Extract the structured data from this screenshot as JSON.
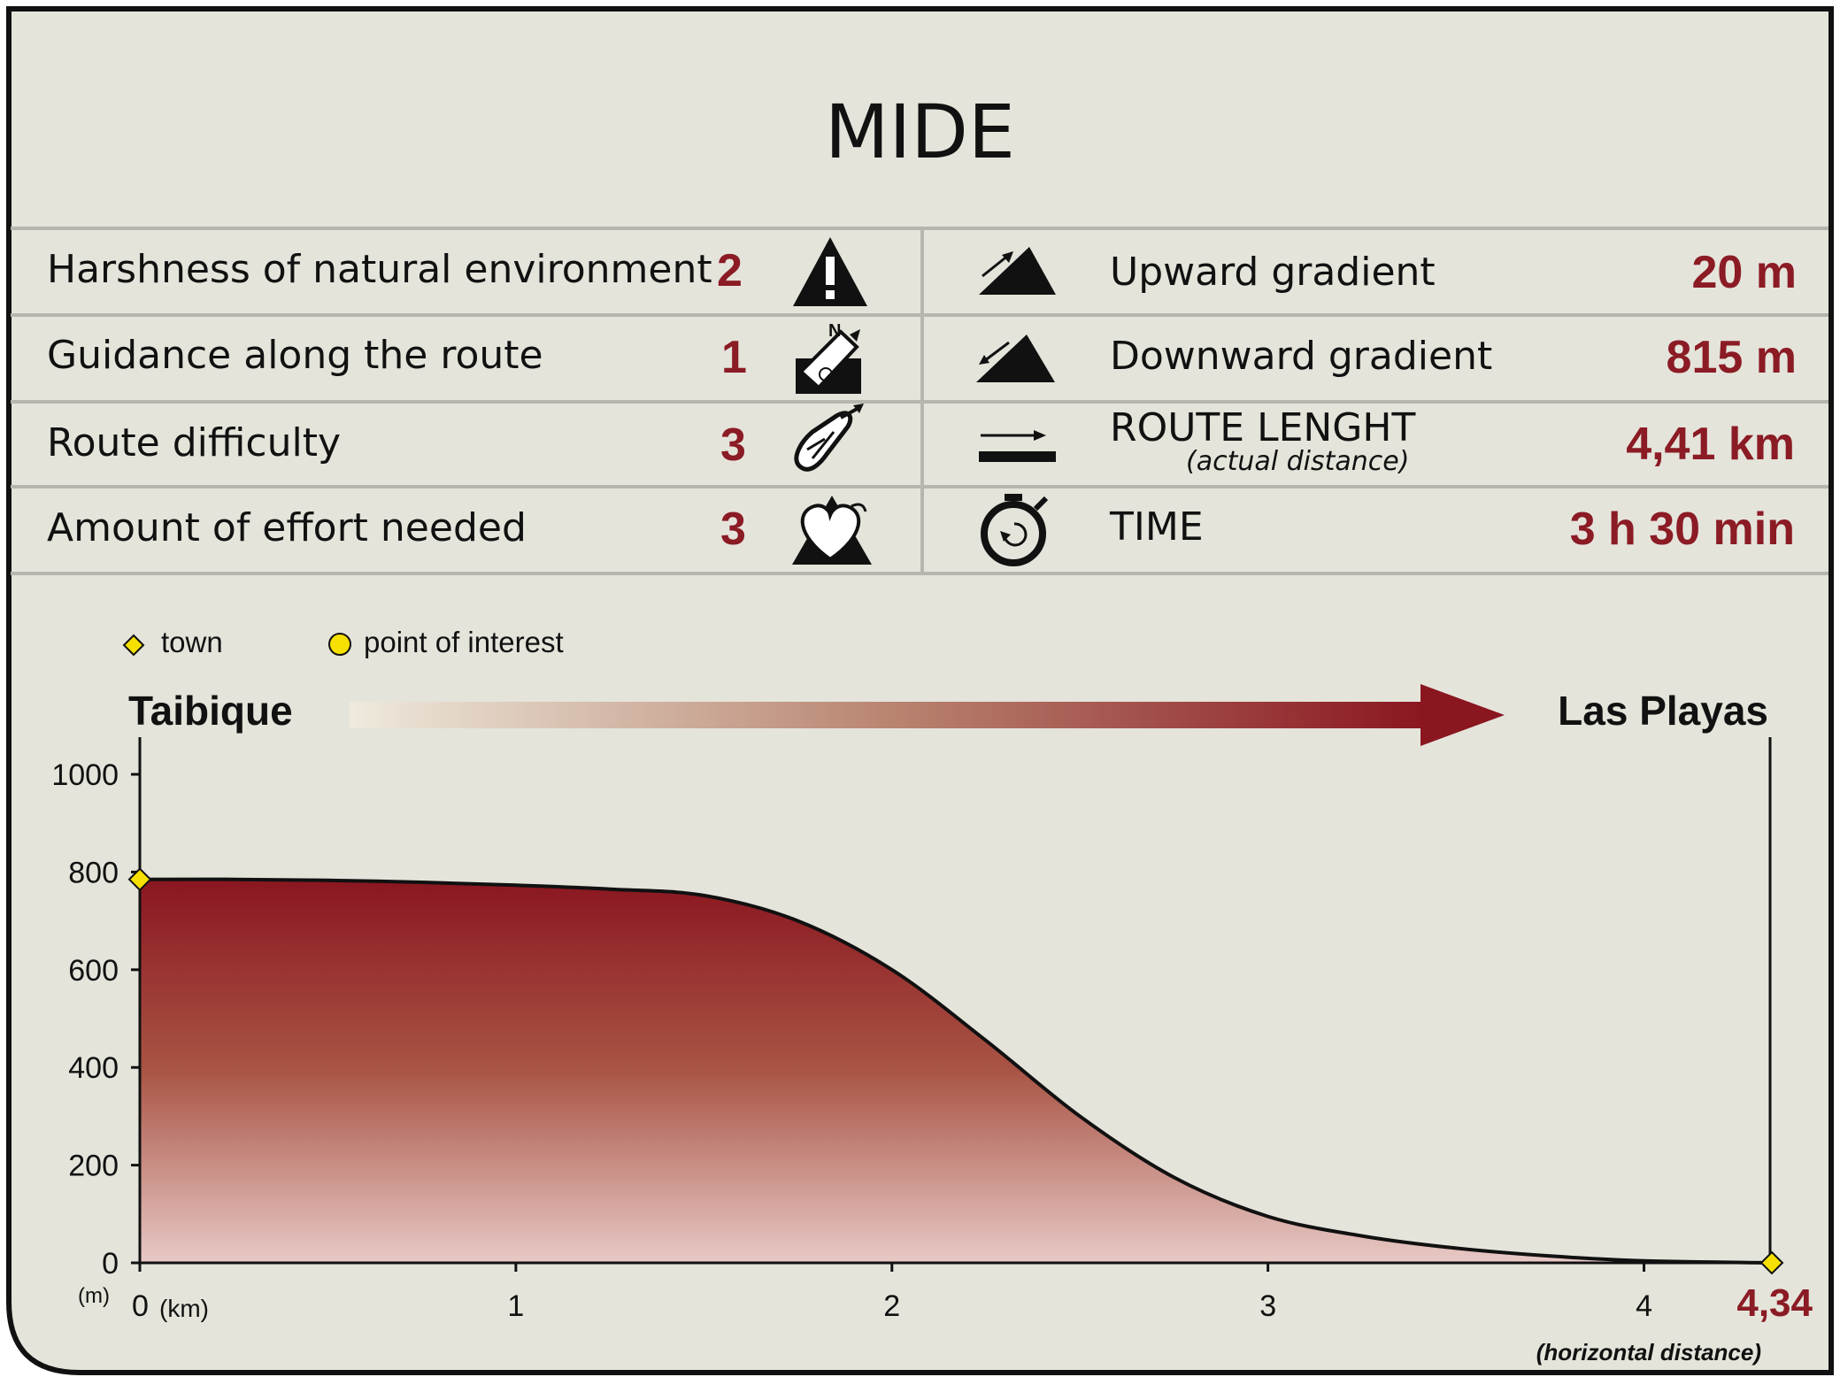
{
  "title": "MIDE",
  "ratings": [
    {
      "label": "Harshness of natural environment",
      "value": "2",
      "icon": "warning-triangle-icon"
    },
    {
      "label": "Guidance along the route",
      "value": "1",
      "icon": "compass-signpost-icon"
    },
    {
      "label": "Route difficulty",
      "value": "3",
      "icon": "footprint-icon"
    },
    {
      "label": "Amount of effort needed",
      "value": "3",
      "icon": "heart-mountain-icon"
    }
  ],
  "stats": {
    "upward": {
      "label": "Upward gradient",
      "value": "20 m",
      "icon": "uphill-icon"
    },
    "downward": {
      "label": "Downward gradient",
      "value": "815 m",
      "icon": "downhill-icon"
    },
    "length": {
      "label": "ROUTE LENGHT",
      "sublabel": "(actual distance)",
      "value": "4,41 km",
      "icon": "arrow-length-icon"
    },
    "time": {
      "label": "TIME",
      "value": "3 h 30 min",
      "icon": "stopwatch-icon"
    }
  },
  "legend": {
    "town": "town",
    "poi": "point of interest"
  },
  "route": {
    "start": "Taibique",
    "end": "Las Playas"
  },
  "colors": {
    "background": "#e4e4db",
    "accent": "#8b1b24",
    "marker": "#f5e000"
  },
  "chart_data": {
    "type": "area",
    "x": [
      0,
      0.25,
      0.5,
      0.75,
      1.0,
      1.25,
      1.5,
      1.75,
      2.0,
      2.25,
      2.5,
      2.75,
      3.0,
      3.25,
      3.5,
      3.75,
      4.0,
      4.34
    ],
    "y": [
      785,
      785,
      783,
      779,
      773,
      765,
      752,
      700,
      600,
      455,
      300,
      175,
      95,
      55,
      30,
      14,
      4,
      0
    ],
    "xlim": [
      0,
      4.34
    ],
    "ylim": [
      0,
      1000
    ],
    "xticks": [
      "0",
      "1",
      "2",
      "3",
      "4"
    ],
    "x_end_label": "4,34",
    "yticks": [
      "0",
      "200",
      "400",
      "600",
      "800",
      "1000"
    ],
    "xunit": "(km)",
    "yunit": "(m)",
    "xcaption": "(horizontal distance)",
    "towns": [
      {
        "x": 0,
        "y": 785
      },
      {
        "x": 4.34,
        "y": 0
      }
    ],
    "grid": false
  }
}
